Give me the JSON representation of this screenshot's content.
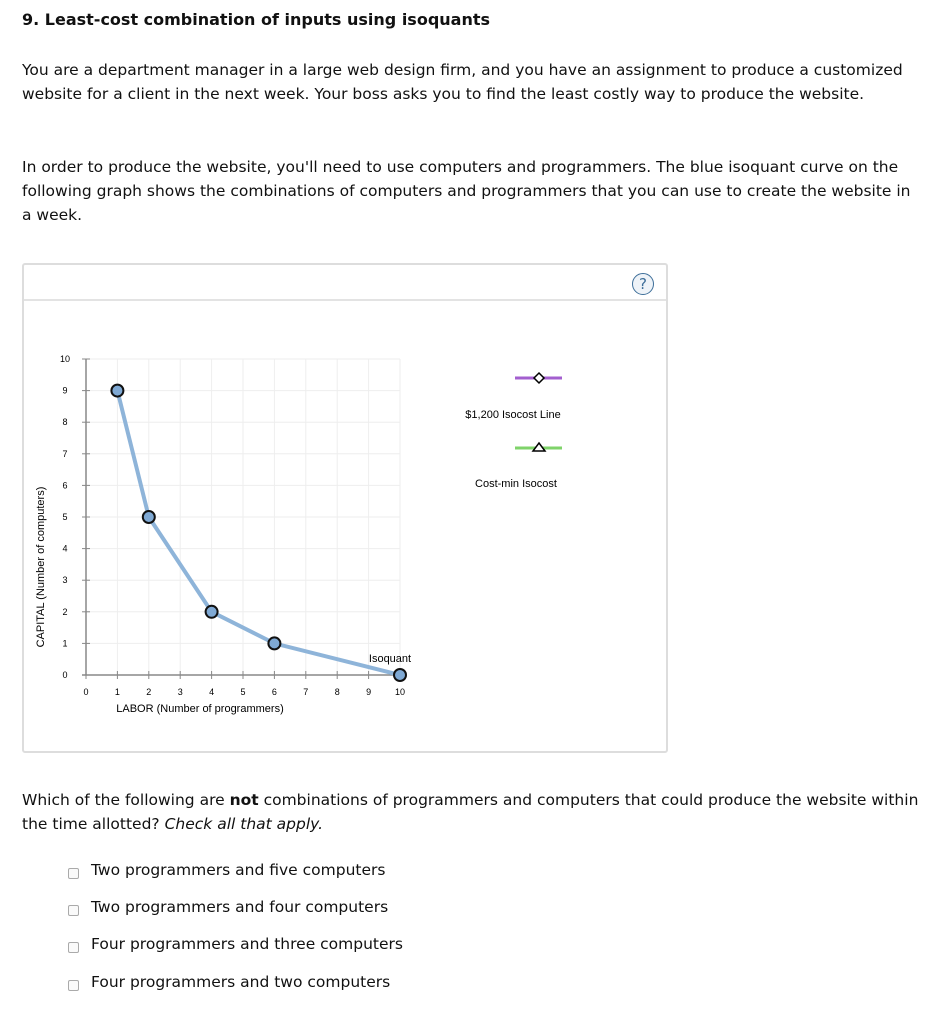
{
  "title": "9. Least-cost combination of inputs using isoquants",
  "para1": "You are a department manager in a large web design firm, and you have an assignment to produce a customized website for a client in the next week. Your boss asks you to find the least costly way to produce the website.",
  "para2": "In order to produce the website, you'll need to use computers and programmers. The blue isoquant curve on the following graph shows the combinations of computers and programmers that you can use to create the website in a week.",
  "help_label": "?",
  "chart_data": {
    "type": "line",
    "xlabel": "LABOR (Number of programmers)",
    "ylabel": "CAPITAL (Number of computers)",
    "xlim": [
      0,
      10
    ],
    "ylim": [
      0,
      10
    ],
    "xticks": [
      "0",
      "1",
      "2",
      "3",
      "4",
      "5",
      "6",
      "7",
      "8",
      "9",
      "10"
    ],
    "yticks": [
      "0",
      "1",
      "2",
      "3",
      "4",
      "5",
      "6",
      "7",
      "8",
      "9",
      "10"
    ],
    "grid": true,
    "series": [
      {
        "name": "Isoquant",
        "color": "#8eb4d9",
        "x": [
          1,
          2,
          4,
          6,
          10
        ],
        "y": [
          9,
          5,
          2,
          1,
          0
        ]
      }
    ],
    "legend": [
      {
        "label": "$1,200 Isocost Line",
        "color": "#a35fcf",
        "marker": "diamond"
      },
      {
        "label": "Cost-min Isocost",
        "color": "#7fd36a",
        "marker": "triangle"
      }
    ],
    "legend_position": "right"
  },
  "question_pre": "Which of the following are ",
  "question_bold": "not",
  "question_post": " combinations of programmers and computers that could produce the website within the time allotted? ",
  "question_em": "Check all that apply.",
  "options": [
    "Two programmers and five computers",
    "Two programmers and four computers",
    "Four programmers and three computers",
    "Four programmers and two computers"
  ]
}
